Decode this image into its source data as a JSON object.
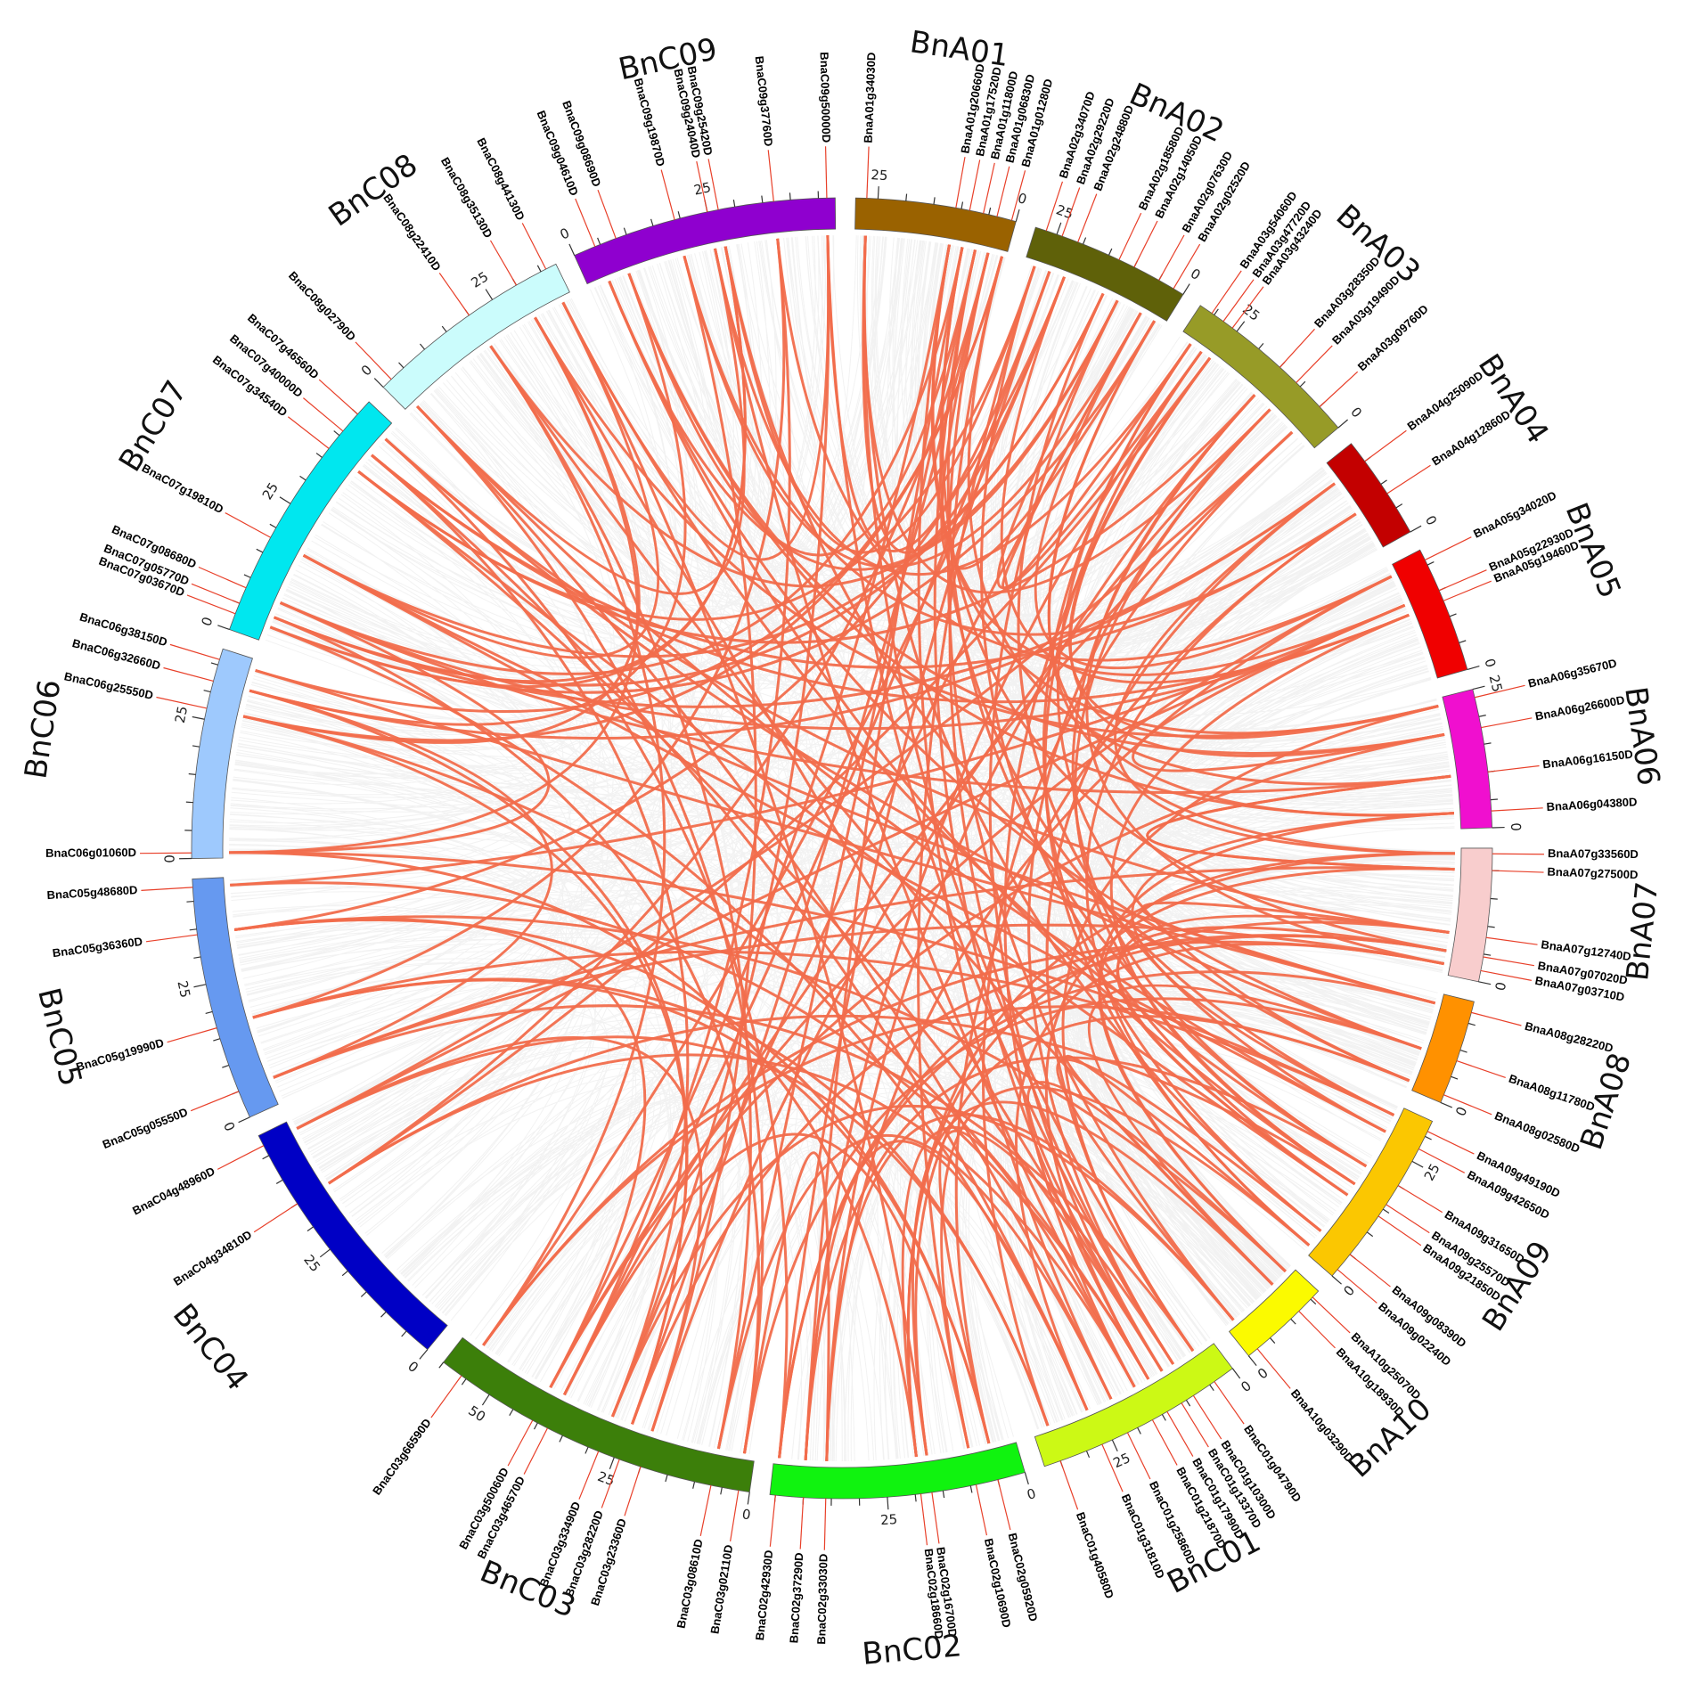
{
  "chart_data": {
    "type": "circos",
    "scale_tick_labels": [
      "0",
      "25",
      "50"
    ],
    "colors": {
      "highlight_link": "#f16d4c",
      "background_link": "#d9d9d9",
      "gene_marker": "#e8402a"
    },
    "chromosomes": [
      {
        "id": "BnA01",
        "length": 29,
        "color": "#9a6200",
        "genes": [
          {
            "name": "BnaA01g34030D",
            "pos": 27
          },
          {
            "name": "BnaA01g20660D",
            "pos": 11
          },
          {
            "name": "BnaA01g17520D",
            "pos": 8.5
          },
          {
            "name": "BnaA01g11800D",
            "pos": 6
          },
          {
            "name": "BnaA01g06830D",
            "pos": 3.5
          },
          {
            "name": "BnaA01g01280D",
            "pos": 0.8
          }
        ]
      },
      {
        "id": "BnA02",
        "length": 29,
        "color": "#5f6109",
        "genes": [
          {
            "name": "BnaA02g34070D",
            "pos": 27
          },
          {
            "name": "BnaA02g29220D",
            "pos": 24
          },
          {
            "name": "BnaA02g24880D",
            "pos": 21
          },
          {
            "name": "BnaA02g18580D",
            "pos": 13
          },
          {
            "name": "BnaA02g14050D",
            "pos": 10
          },
          {
            "name": "BnaA02g07630D",
            "pos": 5
          },
          {
            "name": "BnaA02g02520D",
            "pos": 2
          }
        ]
      },
      {
        "id": "BnA03",
        "length": 33,
        "color": "#979b27",
        "genes": [
          {
            "name": "BnaA03g54060D",
            "pos": 30.5
          },
          {
            "name": "BnaA03g47720D",
            "pos": 28
          },
          {
            "name": "BnaA03g43240D",
            "pos": 26
          },
          {
            "name": "BnaA03g28350D",
            "pos": 15
          },
          {
            "name": "BnaA03g19490D",
            "pos": 11
          },
          {
            "name": "BnaA03g09760D",
            "pos": 5
          }
        ]
      },
      {
        "id": "BnA04",
        "length": 19,
        "color": "#c30000",
        "genes": [
          {
            "name": "BnaA04g25090D",
            "pos": 15
          },
          {
            "name": "BnaA04g12860D",
            "pos": 8
          }
        ]
      },
      {
        "id": "BnA05",
        "length": 23,
        "color": "#f00000",
        "genes": [
          {
            "name": "BnaA05g34020D",
            "pos": 21
          },
          {
            "name": "BnaA05g22930D",
            "pos": 15
          },
          {
            "name": "BnaA05g19460D",
            "pos": 13
          }
        ]
      },
      {
        "id": "BnA06",
        "length": 25,
        "color": "#f00fcf",
        "genes": [
          {
            "name": "BnaA06g35670D",
            "pos": 23.5
          },
          {
            "name": "BnaA06g26600D",
            "pos": 18
          },
          {
            "name": "BnaA06g16150D",
            "pos": 10
          },
          {
            "name": "BnaA06g04380D",
            "pos": 3
          }
        ]
      },
      {
        "id": "BnA07",
        "length": 24,
        "color": "#f8cdcd",
        "genes": [
          {
            "name": "BnaA07g33560D",
            "pos": 23
          },
          {
            "name": "BnaA07g27500D",
            "pos": 20
          },
          {
            "name": "BnaA07g12740D",
            "pos": 8
          },
          {
            "name": "BnaA07g07020D",
            "pos": 4.5
          },
          {
            "name": "BnaA07g03710D",
            "pos": 2
          }
        ]
      },
      {
        "id": "BnA08",
        "length": 19,
        "color": "#ff9100",
        "genes": [
          {
            "name": "BnaA08g28220D",
            "pos": 17
          },
          {
            "name": "BnaA08g11780D",
            "pos": 8
          },
          {
            "name": "BnaA08g02580D",
            "pos": 1.5
          }
        ]
      },
      {
        "id": "BnA09",
        "length": 33,
        "color": "#fbc701",
        "genes": [
          {
            "name": "BnaA09g49190D",
            "pos": 31
          },
          {
            "name": "BnaA09g42650D",
            "pos": 27.5
          },
          {
            "name": "BnaA09g31650D",
            "pos": 20
          },
          {
            "name": "BnaA09g25570D",
            "pos": 16
          },
          {
            "name": "BnaA09g21850D",
            "pos": 13.5
          },
          {
            "name": "BnaA09g08390D",
            "pos": 5
          },
          {
            "name": "BnaA09g02240D",
            "pos": 1.5
          }
        ]
      },
      {
        "id": "BnA10",
        "length": 17,
        "color": "#fbfa00",
        "genes": [
          {
            "name": "BnaA10g25070D",
            "pos": 15.5
          },
          {
            "name": "BnaA10g18930D",
            "pos": 12
          },
          {
            "name": "BnaA10g03290D",
            "pos": 2
          }
        ]
      },
      {
        "id": "BnC01",
        "length": 38,
        "color": "#ccf915",
        "genes": [
          {
            "name": "BnaC01g40580D",
            "pos": 35
          },
          {
            "name": "BnaC01g31810D",
            "pos": 27
          },
          {
            "name": "BnaC01g25860D",
            "pos": 22
          },
          {
            "name": "BnaC01g21870D",
            "pos": 17
          },
          {
            "name": "BnaC01g17990D",
            "pos": 14
          },
          {
            "name": "BnaC01g13370D",
            "pos": 11
          },
          {
            "name": "BnaC01g10300D",
            "pos": 8.5
          },
          {
            "name": "BnaC01g04790D",
            "pos": 4
          }
        ]
      },
      {
        "id": "BnC02",
        "length": 46,
        "color": "#10f30f",
        "genes": [
          {
            "name": "BnaC02g42930D",
            "pos": 45
          },
          {
            "name": "BnaC02g37290D",
            "pos": 40
          },
          {
            "name": "BnaC02g33030D",
            "pos": 36
          },
          {
            "name": "BnaC02g18660D",
            "pos": 19
          },
          {
            "name": "BnaC02g16700D",
            "pos": 17
          },
          {
            "name": "BnaC02g10690D",
            "pos": 9
          },
          {
            "name": "BnaC02g05920D",
            "pos": 5
          }
        ]
      },
      {
        "id": "BnC03",
        "length": 60,
        "color": "#3c7f0a",
        "genes": [
          {
            "name": "BnaC03g02110D",
            "pos": 2
          },
          {
            "name": "BnaC03g08610D",
            "pos": 7
          },
          {
            "name": "BnaC03g23360D",
            "pos": 20
          },
          {
            "name": "BnaC03g28220D",
            "pos": 24
          },
          {
            "name": "BnaC03g33490D",
            "pos": 28
          },
          {
            "name": "BnaC03g46570D",
            "pos": 38
          },
          {
            "name": "BnaC03g50060D",
            "pos": 41
          },
          {
            "name": "BnaC03g66590D",
            "pos": 56
          }
        ]
      },
      {
        "id": "BnC04",
        "length": 49,
        "color": "#0000c5",
        "genes": [
          {
            "name": "BnaC04g34810D",
            "pos": 35
          },
          {
            "name": "BnaC04g48960D",
            "pos": 47
          }
        ]
      },
      {
        "id": "BnC05",
        "length": 44,
        "color": "#6699f0",
        "genes": [
          {
            "name": "BnaC05g05550D",
            "pos": 5
          },
          {
            "name": "BnaC05g19990D",
            "pos": 17
          },
          {
            "name": "BnaC05g36360D",
            "pos": 34
          },
          {
            "name": "BnaC05g48680D",
            "pos": 42.5
          }
        ]
      },
      {
        "id": "BnC06",
        "length": 38,
        "color": "#9ec9fd",
        "genes": [
          {
            "name": "BnaC06g01060D",
            "pos": 1
          },
          {
            "name": "BnaC06g25550D",
            "pos": 27
          },
          {
            "name": "BnaC06g32660D",
            "pos": 32
          },
          {
            "name": "BnaC06g38150D",
            "pos": 36
          }
        ]
      },
      {
        "id": "BnC07",
        "length": 48,
        "color": "#00e7ef",
        "genes": [
          {
            "name": "BnaC07g03670D",
            "pos": 3
          },
          {
            "name": "BnaC07g05770D",
            "pos": 5
          },
          {
            "name": "BnaC07g08680D",
            "pos": 8
          },
          {
            "name": "BnaC07g19810D",
            "pos": 18
          },
          {
            "name": "BnaC07g34540D",
            "pos": 37
          },
          {
            "name": "BnaC07g40000D",
            "pos": 41
          },
          {
            "name": "BnaC07g46560D",
            "pos": 45
          }
        ]
      },
      {
        "id": "BnC08",
        "length": 38,
        "color": "#cbfcfc",
        "genes": [
          {
            "name": "BnaC08g02790D",
            "pos": 2
          },
          {
            "name": "BnaC08g22410D",
            "pos": 20
          },
          {
            "name": "BnaC08g35130D",
            "pos": 30
          },
          {
            "name": "BnaC08g44130D",
            "pos": 36
          }
        ]
      },
      {
        "id": "BnC09",
        "length": 48,
        "color": "#8f00cf",
        "genes": [
          {
            "name": "BnaC09g50000D",
            "pos": 46.5
          },
          {
            "name": "BnaC09g37760D",
            "pos": 37
          },
          {
            "name": "BnaC09g25420D",
            "pos": 27
          },
          {
            "name": "BnaC09g24040D",
            "pos": 25
          },
          {
            "name": "BnaC09g19870D",
            "pos": 19
          },
          {
            "name": "BnaC09g08690D",
            "pos": 8
          },
          {
            "name": "BnaC09g04610D",
            "pos": 4
          }
        ]
      }
    ]
  }
}
